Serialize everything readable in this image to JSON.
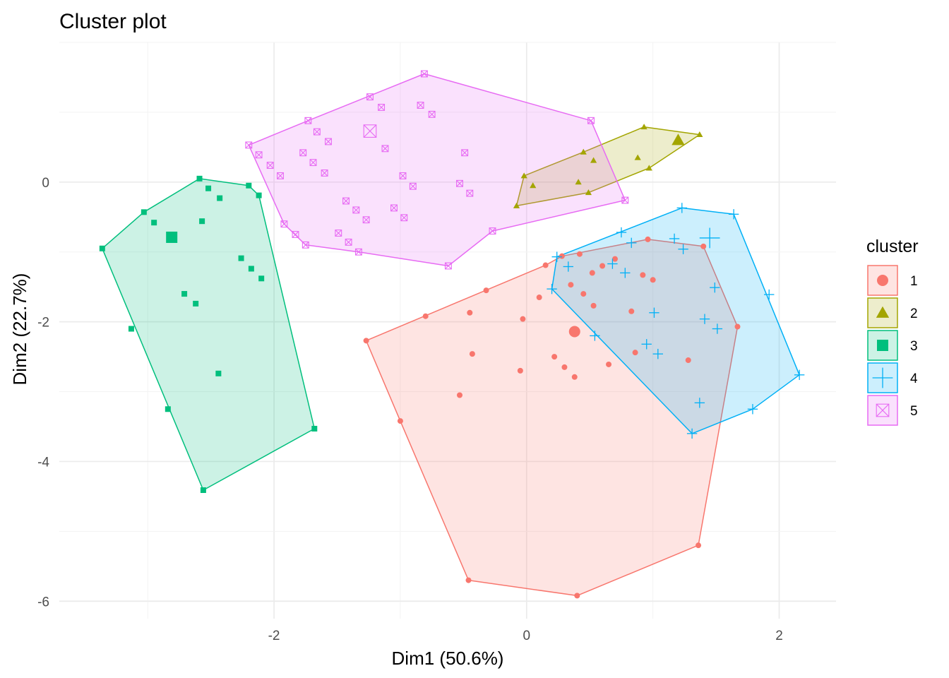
{
  "chart_data": {
    "type": "scatter",
    "title": "Cluster plot",
    "xlabel": "Dim1 (50.6%)",
    "ylabel": "Dim2 (22.7%)",
    "xlim": [
      -3.7,
      2.45
    ],
    "ylim": [
      -6.25,
      2.0
    ],
    "x_ticks": [
      -2,
      0,
      2
    ],
    "x_tick_labels": [
      "-2",
      "0",
      "2"
    ],
    "y_ticks": [
      -6,
      -4,
      -2,
      0
    ],
    "y_tick_labels": [
      "-6",
      "-4",
      "-2",
      "0"
    ],
    "grid": true,
    "legend": {
      "title": "cluster",
      "position": "right"
    },
    "series": [
      {
        "name": "1",
        "color": "#F8766D",
        "shape": "circle",
        "centroid": [
          0.38,
          -2.14
        ],
        "hull": [
          [
            -1.27,
            -2.27
          ],
          [
            0.15,
            -1.19
          ],
          [
            0.28,
            -1.06
          ],
          [
            0.96,
            -0.82
          ],
          [
            1.4,
            -0.92
          ],
          [
            1.67,
            -2.07
          ],
          [
            1.36,
            -5.2
          ],
          [
            0.4,
            -5.92
          ],
          [
            -0.46,
            -5.7
          ],
          [
            -1.0,
            -3.42
          ]
        ],
        "points": [
          [
            -1.27,
            -2.27
          ],
          [
            0.15,
            -1.19
          ],
          [
            0.28,
            -1.06
          ],
          [
            0.96,
            -0.82
          ],
          [
            1.4,
            -0.92
          ],
          [
            1.67,
            -2.07
          ],
          [
            1.36,
            -5.2
          ],
          [
            0.4,
            -5.92
          ],
          [
            -0.46,
            -5.7
          ],
          [
            -1.0,
            -3.42
          ],
          [
            -0.32,
            -1.55
          ],
          [
            -0.8,
            -1.92
          ],
          [
            -0.45,
            -1.87
          ],
          [
            -0.43,
            -2.46
          ],
          [
            -0.53,
            -3.05
          ],
          [
            -0.03,
            -1.96
          ],
          [
            -0.05,
            -2.7
          ],
          [
            0.1,
            -1.65
          ],
          [
            0.22,
            -2.5
          ],
          [
            0.3,
            -2.65
          ],
          [
            0.38,
            -2.79
          ],
          [
            0.65,
            -2.61
          ],
          [
            0.42,
            -1.03
          ],
          [
            0.52,
            -1.3
          ],
          [
            0.6,
            -1.2
          ],
          [
            0.7,
            -1.1
          ],
          [
            0.35,
            -1.47
          ],
          [
            0.45,
            -1.6
          ],
          [
            0.53,
            -1.77
          ],
          [
            0.83,
            -1.85
          ],
          [
            0.92,
            -1.33
          ],
          [
            1.0,
            -1.4
          ],
          [
            0.86,
            -2.44
          ],
          [
            1.28,
            -2.55
          ]
        ]
      },
      {
        "name": "2",
        "color": "#A3A500",
        "shape": "triangle",
        "centroid": [
          1.2,
          0.6
        ],
        "hull": [
          [
            -0.08,
            -0.34
          ],
          [
            -0.02,
            0.09
          ],
          [
            0.45,
            0.43
          ],
          [
            0.93,
            0.79
          ],
          [
            1.37,
            0.68
          ],
          [
            0.97,
            0.2
          ],
          [
            0.49,
            -0.15
          ]
        ],
        "points": [
          [
            -0.08,
            -0.34
          ],
          [
            -0.02,
            0.09
          ],
          [
            0.45,
            0.43
          ],
          [
            0.93,
            0.79
          ],
          [
            1.37,
            0.68
          ],
          [
            0.97,
            0.2
          ],
          [
            0.49,
            -0.15
          ],
          [
            0.05,
            -0.05
          ],
          [
            0.41,
            0.0
          ],
          [
            0.53,
            0.31
          ],
          [
            0.88,
            0.35
          ]
        ]
      },
      {
        "name": "3",
        "color": "#00BF7D",
        "shape": "square",
        "centroid": [
          -2.81,
          -0.79
        ],
        "hull": [
          [
            -3.36,
            -0.95
          ],
          [
            -3.03,
            -0.43
          ],
          [
            -2.59,
            0.05
          ],
          [
            -2.2,
            -0.05
          ],
          [
            -2.12,
            -0.19
          ],
          [
            -1.68,
            -3.53
          ],
          [
            -2.56,
            -4.41
          ]
        ],
        "points": [
          [
            -3.36,
            -0.95
          ],
          [
            -3.03,
            -0.43
          ],
          [
            -2.59,
            0.05
          ],
          [
            -2.2,
            -0.05
          ],
          [
            -2.12,
            -0.19
          ],
          [
            -1.68,
            -3.53
          ],
          [
            -2.56,
            -4.41
          ],
          [
            -2.52,
            -0.09
          ],
          [
            -2.43,
            -0.23
          ],
          [
            -2.95,
            -0.58
          ],
          [
            -2.57,
            -0.56
          ],
          [
            -2.26,
            -1.09
          ],
          [
            -2.18,
            -1.24
          ],
          [
            -2.1,
            -1.38
          ],
          [
            -2.71,
            -1.6
          ],
          [
            -2.62,
            -1.74
          ],
          [
            -3.13,
            -2.1
          ],
          [
            -2.44,
            -2.74
          ],
          [
            -2.84,
            -3.25
          ]
        ]
      },
      {
        "name": "4",
        "color": "#00B0F6",
        "shape": "plus",
        "centroid": [
          1.45,
          -0.8
        ],
        "hull": [
          [
            0.2,
            -1.53
          ],
          [
            0.24,
            -1.07
          ],
          [
            1.23,
            -0.37
          ],
          [
            1.64,
            -0.46
          ],
          [
            2.16,
            -2.76
          ],
          [
            1.79,
            -3.25
          ],
          [
            1.31,
            -3.6
          ]
        ],
        "points": [
          [
            0.2,
            -1.53
          ],
          [
            0.24,
            -1.07
          ],
          [
            1.23,
            -0.37
          ],
          [
            1.64,
            -0.46
          ],
          [
            2.16,
            -2.76
          ],
          [
            1.79,
            -3.25
          ],
          [
            1.31,
            -3.6
          ],
          [
            0.75,
            -0.72
          ],
          [
            0.83,
            -0.87
          ],
          [
            1.17,
            -0.81
          ],
          [
            1.24,
            -0.96
          ],
          [
            0.33,
            -1.21
          ],
          [
            0.68,
            -1.17
          ],
          [
            0.78,
            -1.3
          ],
          [
            1.49,
            -1.51
          ],
          [
            1.92,
            -1.61
          ],
          [
            1.41,
            -1.96
          ],
          [
            1.01,
            -1.87
          ],
          [
            1.51,
            -2.1
          ],
          [
            0.54,
            -2.2
          ],
          [
            0.95,
            -2.32
          ],
          [
            1.04,
            -2.46
          ],
          [
            1.37,
            -3.16
          ]
        ]
      },
      {
        "name": "5",
        "color": "#E76BF3",
        "shape": "square-x",
        "centroid": [
          -1.24,
          0.73
        ],
        "hull": [
          [
            -2.2,
            0.53
          ],
          [
            -1.73,
            0.88
          ],
          [
            -0.81,
            1.55
          ],
          [
            0.51,
            0.88
          ],
          [
            0.78,
            -0.26
          ],
          [
            -0.27,
            -0.7
          ],
          [
            -0.62,
            -1.2
          ],
          [
            -1.33,
            -1.0
          ],
          [
            -1.75,
            -0.9
          ],
          [
            -1.92,
            -0.6
          ]
        ],
        "points": [
          [
            -2.2,
            0.53
          ],
          [
            -1.73,
            0.88
          ],
          [
            -0.81,
            1.55
          ],
          [
            0.51,
            0.88
          ],
          [
            0.78,
            -0.26
          ],
          [
            -0.27,
            -0.7
          ],
          [
            -0.62,
            -1.2
          ],
          [
            -1.33,
            -1.0
          ],
          [
            -1.75,
            -0.9
          ],
          [
            -1.92,
            -0.6
          ],
          [
            -2.12,
            0.39
          ],
          [
            -2.03,
            0.24
          ],
          [
            -1.95,
            0.09
          ],
          [
            -1.66,
            0.72
          ],
          [
            -1.57,
            0.58
          ],
          [
            -1.77,
            0.42
          ],
          [
            -1.69,
            0.28
          ],
          [
            -1.6,
            0.13
          ],
          [
            -1.24,
            1.22
          ],
          [
            -1.15,
            1.07
          ],
          [
            -1.12,
            0.48
          ],
          [
            -0.84,
            1.1
          ],
          [
            -0.75,
            0.97
          ],
          [
            -0.49,
            0.42
          ],
          [
            -0.98,
            0.09
          ],
          [
            -0.9,
            -0.06
          ],
          [
            -0.53,
            -0.02
          ],
          [
            -0.45,
            -0.16
          ],
          [
            -1.43,
            -0.27
          ],
          [
            -1.35,
            -0.4
          ],
          [
            -1.27,
            -0.54
          ],
          [
            -1.05,
            -0.37
          ],
          [
            -0.97,
            -0.51
          ],
          [
            -1.49,
            -0.73
          ],
          [
            -1.41,
            -0.86
          ],
          [
            -1.83,
            -0.75
          ]
        ]
      }
    ]
  }
}
